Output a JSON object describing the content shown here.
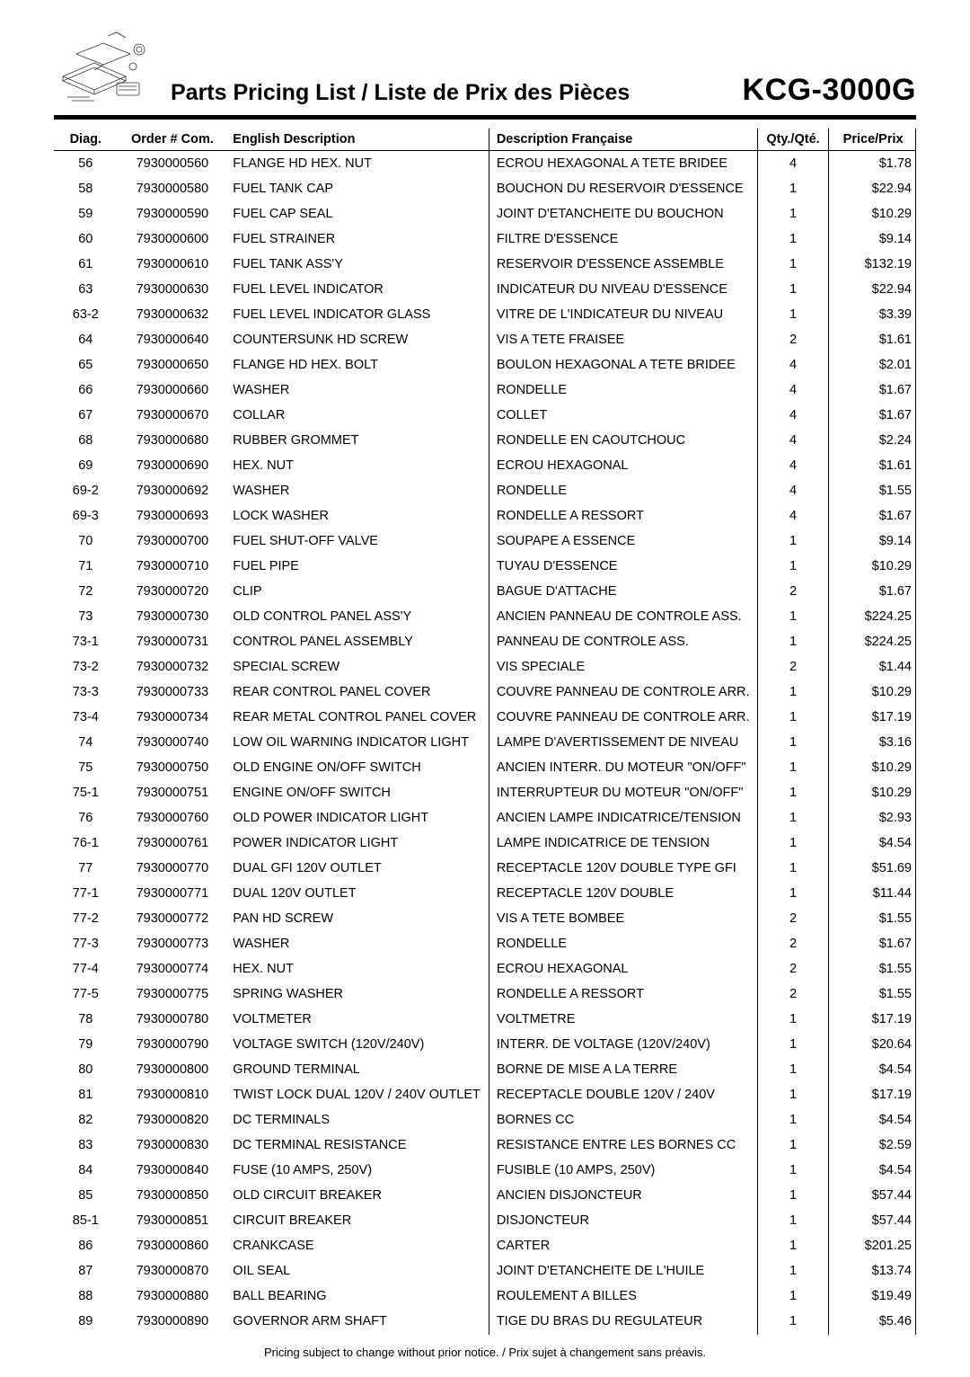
{
  "header": {
    "title": "Parts Pricing List / Liste de Prix des Pièces",
    "model": "KCG-3000G"
  },
  "columns": {
    "diag": "Diag.",
    "order": "Order # Com.",
    "en": "English Description",
    "fr": "Description Française",
    "qty": "Qty./Qté.",
    "price": "Price/Prix"
  },
  "rows": [
    {
      "diag": "56",
      "order": "7930000560",
      "en": "FLANGE HD HEX. NUT",
      "fr": "ECROU HEXAGONAL A TETE BRIDEE",
      "qty": "4",
      "price": "$1.78"
    },
    {
      "diag": "58",
      "order": "7930000580",
      "en": "FUEL TANK CAP",
      "fr": "BOUCHON DU RESERVOIR D'ESSENCE",
      "qty": "1",
      "price": "$22.94"
    },
    {
      "diag": "59",
      "order": "7930000590",
      "en": "FUEL CAP SEAL",
      "fr": "JOINT D'ETANCHEITE DU BOUCHON",
      "qty": "1",
      "price": "$10.29"
    },
    {
      "diag": "60",
      "order": "7930000600",
      "en": "FUEL STRAINER",
      "fr": "FILTRE D'ESSENCE",
      "qty": "1",
      "price": "$9.14"
    },
    {
      "diag": "61",
      "order": "7930000610",
      "en": "FUEL TANK ASS'Y",
      "fr": "RESERVOIR D'ESSENCE ASSEMBLE",
      "qty": "1",
      "price": "$132.19"
    },
    {
      "diag": "63",
      "order": "7930000630",
      "en": "FUEL LEVEL INDICATOR",
      "fr": "INDICATEUR DU NIVEAU D'ESSENCE",
      "qty": "1",
      "price": "$22.94"
    },
    {
      "diag": "63-2",
      "order": "7930000632",
      "en": "FUEL LEVEL INDICATOR GLASS",
      "fr": "VITRE DE L'INDICATEUR DU NIVEAU",
      "qty": "1",
      "price": "$3.39"
    },
    {
      "diag": "64",
      "order": "7930000640",
      "en": "COUNTERSUNK HD SCREW",
      "fr": "VIS A TETE FRAISEE",
      "qty": "2",
      "price": "$1.61"
    },
    {
      "diag": "65",
      "order": "7930000650",
      "en": "FLANGE HD HEX. BOLT",
      "fr": "BOULON HEXAGONAL A TETE BRIDEE",
      "qty": "4",
      "price": "$2.01"
    },
    {
      "diag": "66",
      "order": "7930000660",
      "en": "WASHER",
      "fr": "RONDELLE",
      "qty": "4",
      "price": "$1.67"
    },
    {
      "diag": "67",
      "order": "7930000670",
      "en": "COLLAR",
      "fr": "COLLET",
      "qty": "4",
      "price": "$1.67"
    },
    {
      "diag": "68",
      "order": "7930000680",
      "en": "RUBBER GROMMET",
      "fr": "RONDELLE EN CAOUTCHOUC",
      "qty": "4",
      "price": "$2.24"
    },
    {
      "diag": "69",
      "order": "7930000690",
      "en": "HEX. NUT",
      "fr": "ECROU HEXAGONAL",
      "qty": "4",
      "price": "$1.61"
    },
    {
      "diag": "69-2",
      "order": "7930000692",
      "en": "WASHER",
      "fr": "RONDELLE",
      "qty": "4",
      "price": "$1.55"
    },
    {
      "diag": "69-3",
      "order": "7930000693",
      "en": "LOCK WASHER",
      "fr": "RONDELLE A RESSORT",
      "qty": "4",
      "price": "$1.67"
    },
    {
      "diag": "70",
      "order": "7930000700",
      "en": "FUEL SHUT-OFF VALVE",
      "fr": "SOUPAPE A ESSENCE",
      "qty": "1",
      "price": "$9.14"
    },
    {
      "diag": "71",
      "order": "7930000710",
      "en": "FUEL PIPE",
      "fr": "TUYAU D'ESSENCE",
      "qty": "1",
      "price": "$10.29"
    },
    {
      "diag": "72",
      "order": "7930000720",
      "en": "CLIP",
      "fr": "BAGUE D'ATTACHE",
      "qty": "2",
      "price": "$1.67"
    },
    {
      "diag": "73",
      "order": "7930000730",
      "en": "OLD CONTROL PANEL ASS'Y",
      "fr": "ANCIEN PANNEAU DE CONTROLE ASS.",
      "qty": "1",
      "price": "$224.25"
    },
    {
      "diag": "73-1",
      "order": "7930000731",
      "en": "CONTROL PANEL ASSEMBLY",
      "fr": "PANNEAU DE CONTROLE ASS.",
      "qty": "1",
      "price": "$224.25"
    },
    {
      "diag": "73-2",
      "order": "7930000732",
      "en": "SPECIAL SCREW",
      "fr": "VIS SPECIALE",
      "qty": "2",
      "price": "$1.44"
    },
    {
      "diag": "73-3",
      "order": "7930000733",
      "en": "REAR CONTROL PANEL COVER",
      "fr": "COUVRE PANNEAU DE CONTROLE ARR.",
      "qty": "1",
      "price": "$10.29"
    },
    {
      "diag": "73-4",
      "order": "7930000734",
      "en": "REAR METAL CONTROL PANEL COVER",
      "fr": "COUVRE PANNEAU DE CONTROLE ARR.",
      "qty": "1",
      "price": "$17.19"
    },
    {
      "diag": "74",
      "order": "7930000740",
      "en": "LOW OIL WARNING INDICATOR LIGHT",
      "fr": "LAMPE D'AVERTISSEMENT DE NIVEAU",
      "qty": "1",
      "price": "$3.16"
    },
    {
      "diag": "75",
      "order": "7930000750",
      "en": "OLD ENGINE ON/OFF SWITCH",
      "fr": "ANCIEN INTERR. DU MOTEUR \"ON/OFF\"",
      "qty": "1",
      "price": "$10.29"
    },
    {
      "diag": "75-1",
      "order": "7930000751",
      "en": "ENGINE ON/OFF SWITCH",
      "fr": "INTERRUPTEUR DU MOTEUR \"ON/OFF\"",
      "qty": "1",
      "price": "$10.29"
    },
    {
      "diag": "76",
      "order": "7930000760",
      "en": "OLD POWER INDICATOR LIGHT",
      "fr": "ANCIEN LAMPE INDICATRICE/TENSION",
      "qty": "1",
      "price": "$2.93"
    },
    {
      "diag": "76-1",
      "order": "7930000761",
      "en": "POWER INDICATOR LIGHT",
      "fr": "LAMPE INDICATRICE DE TENSION",
      "qty": "1",
      "price": "$4.54"
    },
    {
      "diag": "77",
      "order": "7930000770",
      "en": "DUAL GFI 120V OUTLET",
      "fr": "RECEPTACLE 120V DOUBLE TYPE GFI",
      "qty": "1",
      "price": "$51.69"
    },
    {
      "diag": "77-1",
      "order": "7930000771",
      "en": "DUAL 120V OUTLET",
      "fr": "RECEPTACLE 120V DOUBLE",
      "qty": "1",
      "price": "$11.44"
    },
    {
      "diag": "77-2",
      "order": "7930000772",
      "en": "PAN HD SCREW",
      "fr": "VIS A TETE BOMBEE",
      "qty": "2",
      "price": "$1.55"
    },
    {
      "diag": "77-3",
      "order": "7930000773",
      "en": "WASHER",
      "fr": "RONDELLE",
      "qty": "2",
      "price": "$1.67"
    },
    {
      "diag": "77-4",
      "order": "7930000774",
      "en": "HEX. NUT",
      "fr": "ECROU HEXAGONAL",
      "qty": "2",
      "price": "$1.55"
    },
    {
      "diag": "77-5",
      "order": "7930000775",
      "en": "SPRING WASHER",
      "fr": "RONDELLE A RESSORT",
      "qty": "2",
      "price": "$1.55"
    },
    {
      "diag": "78",
      "order": "7930000780",
      "en": "VOLTMETER",
      "fr": "VOLTMETRE",
      "qty": "1",
      "price": "$17.19"
    },
    {
      "diag": "79",
      "order": "7930000790",
      "en": "VOLTAGE SWITCH (120V/240V)",
      "fr": "INTERR. DE VOLTAGE (120V/240V)",
      "qty": "1",
      "price": "$20.64"
    },
    {
      "diag": "80",
      "order": "7930000800",
      "en": "GROUND TERMINAL",
      "fr": "BORNE DE MISE A LA TERRE",
      "qty": "1",
      "price": "$4.54"
    },
    {
      "diag": "81",
      "order": "7930000810",
      "en": "TWIST LOCK DUAL 120V / 240V OUTLET",
      "fr": "RECEPTACLE DOUBLE 120V / 240V",
      "qty": "1",
      "price": "$17.19"
    },
    {
      "diag": "82",
      "order": "7930000820",
      "en": "DC TERMINALS",
      "fr": "BORNES CC",
      "qty": "1",
      "price": "$4.54"
    },
    {
      "diag": "83",
      "order": "7930000830",
      "en": "DC TERMINAL RESISTANCE",
      "fr": "RESISTANCE ENTRE LES BORNES CC",
      "qty": "1",
      "price": "$2.59"
    },
    {
      "diag": "84",
      "order": "7930000840",
      "en": "FUSE (10 AMPS, 250V)",
      "fr": "FUSIBLE (10 AMPS, 250V)",
      "qty": "1",
      "price": "$4.54"
    },
    {
      "diag": "85",
      "order": "7930000850",
      "en": "OLD CIRCUIT BREAKER",
      "fr": "ANCIEN DISJONCTEUR",
      "qty": "1",
      "price": "$57.44"
    },
    {
      "diag": "85-1",
      "order": "7930000851",
      "en": "CIRCUIT BREAKER",
      "fr": "DISJONCTEUR",
      "qty": "1",
      "price": "$57.44"
    },
    {
      "diag": "86",
      "order": "7930000860",
      "en": "CRANKCASE",
      "fr": "CARTER",
      "qty": "1",
      "price": "$201.25"
    },
    {
      "diag": "87",
      "order": "7930000870",
      "en": "OIL SEAL",
      "fr": "JOINT D'ETANCHEITE DE L'HUILE",
      "qty": "1",
      "price": "$13.74"
    },
    {
      "diag": "88",
      "order": "7930000880",
      "en": "BALL BEARING",
      "fr": "ROULEMENT A BILLES",
      "qty": "1",
      "price": "$19.49"
    },
    {
      "diag": "89",
      "order": "7930000890",
      "en": "GOVERNOR ARM SHAFT",
      "fr": "TIGE DU BRAS DU REGULATEUR",
      "qty": "1",
      "price": "$5.46"
    }
  ],
  "footnote": "Pricing subject to change without prior notice. / Prix sujet à changement sans préavis."
}
